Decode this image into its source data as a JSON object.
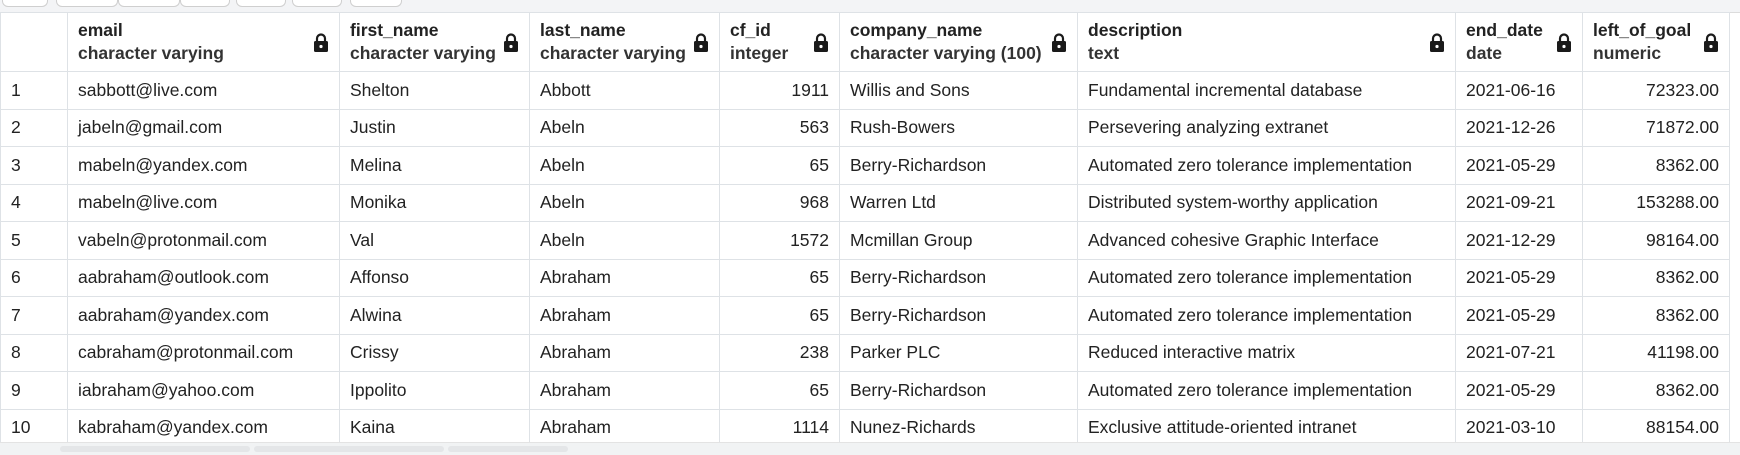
{
  "columns": [
    {
      "name": "email",
      "type": "character varying"
    },
    {
      "name": "first_name",
      "type": "character varying"
    },
    {
      "name": "last_name",
      "type": "character varying"
    },
    {
      "name": "cf_id",
      "type": "integer"
    },
    {
      "name": "company_name",
      "type": "character varying (100)"
    },
    {
      "name": "description",
      "type": "text"
    },
    {
      "name": "end_date",
      "type": "date"
    },
    {
      "name": "left_of_goal",
      "type": "numeric"
    }
  ],
  "rows": [
    {
      "n": "1",
      "email": "sabbott@live.com",
      "first_name": "Shelton",
      "last_name": "Abbott",
      "cf_id": "1911",
      "company_name": "Willis and Sons",
      "description": "Fundamental incremental database",
      "end_date": "2021-06-16",
      "left_of_goal": "72323.00"
    },
    {
      "n": "2",
      "email": "jabeln@gmail.com",
      "first_name": "Justin",
      "last_name": "Abeln",
      "cf_id": "563",
      "company_name": "Rush-Bowers",
      "description": "Persevering analyzing extranet",
      "end_date": "2021-12-26",
      "left_of_goal": "71872.00"
    },
    {
      "n": "3",
      "email": "mabeln@yandex.com",
      "first_name": "Melina",
      "last_name": "Abeln",
      "cf_id": "65",
      "company_name": "Berry-Richardson",
      "description": "Automated zero tolerance implementation",
      "end_date": "2021-05-29",
      "left_of_goal": "8362.00"
    },
    {
      "n": "4",
      "email": "mabeln@live.com",
      "first_name": "Monika",
      "last_name": "Abeln",
      "cf_id": "968",
      "company_name": "Warren Ltd",
      "description": "Distributed system-worthy application",
      "end_date": "2021-09-21",
      "left_of_goal": "153288.00"
    },
    {
      "n": "5",
      "email": "vabeln@protonmail.com",
      "first_name": "Val",
      "last_name": "Abeln",
      "cf_id": "1572",
      "company_name": "Mcmillan Group",
      "description": "Advanced cohesive Graphic Interface",
      "end_date": "2021-12-29",
      "left_of_goal": "98164.00"
    },
    {
      "n": "6",
      "email": "aabraham@outlook.com",
      "first_name": "Affonso",
      "last_name": "Abraham",
      "cf_id": "65",
      "company_name": "Berry-Richardson",
      "description": "Automated zero tolerance implementation",
      "end_date": "2021-05-29",
      "left_of_goal": "8362.00"
    },
    {
      "n": "7",
      "email": "aabraham@yandex.com",
      "first_name": "Alwina",
      "last_name": "Abraham",
      "cf_id": "65",
      "company_name": "Berry-Richardson",
      "description": "Automated zero tolerance implementation",
      "end_date": "2021-05-29",
      "left_of_goal": "8362.00"
    },
    {
      "n": "8",
      "email": "cabraham@protonmail.com",
      "first_name": "Crissy",
      "last_name": "Abraham",
      "cf_id": "238",
      "company_name": "Parker PLC",
      "description": "Reduced interactive matrix",
      "end_date": "2021-07-21",
      "left_of_goal": "41198.00"
    },
    {
      "n": "9",
      "email": "iabraham@yahoo.com",
      "first_name": "Ippolito",
      "last_name": "Abraham",
      "cf_id": "65",
      "company_name": "Berry-Richardson",
      "description": "Automated zero tolerance implementation",
      "end_date": "2021-05-29",
      "left_of_goal": "8362.00"
    },
    {
      "n": "10",
      "email": "kabraham@yandex.com",
      "first_name": "Kaina",
      "last_name": "Abraham",
      "cf_id": "1114",
      "company_name": "Nunez-Richards",
      "description": "Exclusive attitude-oriented intranet",
      "end_date": "2021-03-10",
      "left_of_goal": "88154.00"
    }
  ],
  "icons": {
    "column_lock": "lock-icon"
  },
  "colors": {
    "border": "#dee2e6",
    "text": "#222222",
    "icon": "#1a1a1a"
  }
}
